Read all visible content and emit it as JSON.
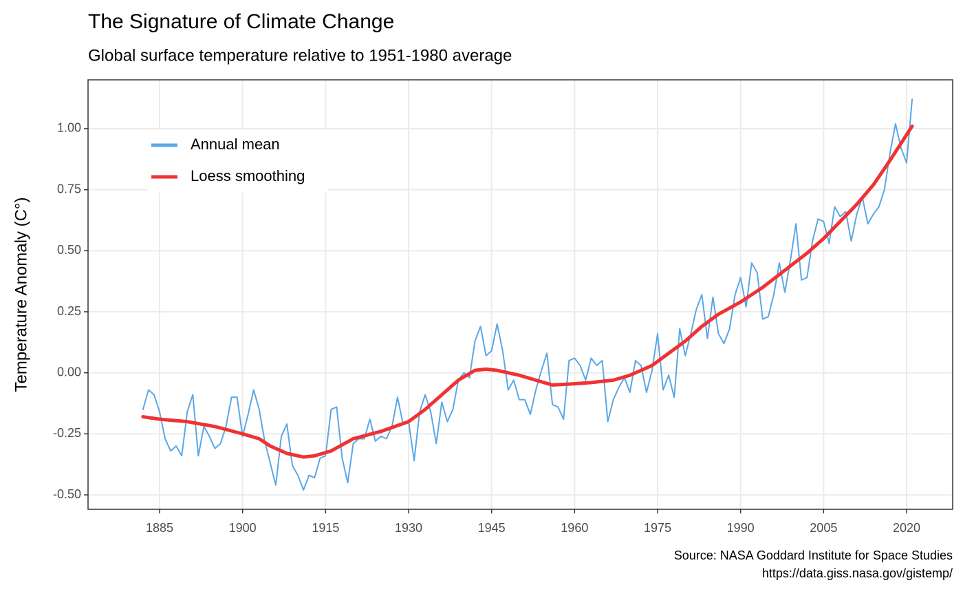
{
  "chart_data": {
    "type": "line",
    "title": "The Signature of Climate Change",
    "subtitle": "Global surface temperature relative to 1951-1980 average",
    "ylabel": "Temperature Anomaly (C°)",
    "caption": [
      "Source: NASA Goddard Institute for Space Studies",
      "https://data.giss.nasa.gov/gistemp/"
    ],
    "legend": "top-left",
    "grid": true,
    "xlim": [
      1872.07,
      2028.33
    ],
    "ylim": [
      -0.559,
      1.2
    ],
    "xticks": [
      1885,
      1900,
      1915,
      1930,
      1945,
      1960,
      1975,
      1990,
      2005,
      2020
    ],
    "yticks": [
      {
        "value": -0.5,
        "label": "-0.50"
      },
      {
        "value": -0.25,
        "label": "-0.25"
      },
      {
        "value": 0,
        "label": "0.00"
      },
      {
        "value": 0.25,
        "label": "0.25"
      },
      {
        "value": 0.5,
        "label": "0.50"
      },
      {
        "value": 0.75,
        "label": "0.75"
      },
      {
        "value": 1,
        "label": "1.00"
      }
    ],
    "x": [
      1882,
      1883,
      1884,
      1885,
      1886,
      1887,
      1888,
      1889,
      1890,
      1891,
      1892,
      1893,
      1894,
      1895,
      1896,
      1897,
      1898,
      1899,
      1900,
      1901,
      1902,
      1903,
      1904,
      1905,
      1906,
      1907,
      1908,
      1909,
      1910,
      1911,
      1912,
      1913,
      1914,
      1915,
      1916,
      1917,
      1918,
      1919,
      1920,
      1921,
      1922,
      1923,
      1924,
      1925,
      1926,
      1927,
      1928,
      1929,
      1930,
      1931,
      1932,
      1933,
      1934,
      1935,
      1936,
      1937,
      1938,
      1939,
      1940,
      1941,
      1942,
      1943,
      1944,
      1945,
      1946,
      1947,
      1948,
      1949,
      1950,
      1951,
      1952,
      1953,
      1954,
      1955,
      1956,
      1957,
      1958,
      1959,
      1960,
      1961,
      1962,
      1963,
      1964,
      1965,
      1966,
      1967,
      1968,
      1969,
      1970,
      1971,
      1972,
      1973,
      1974,
      1975,
      1976,
      1977,
      1978,
      1979,
      1980,
      1981,
      1982,
      1983,
      1984,
      1985,
      1986,
      1987,
      1988,
      1989,
      1990,
      1991,
      1992,
      1993,
      1994,
      1995,
      1996,
      1997,
      1998,
      1999,
      2000,
      2001,
      2002,
      2003,
      2004,
      2005,
      2006,
      2007,
      2008,
      2009,
      2010,
      2011,
      2012,
      2013,
      2014,
      2015,
      2016,
      2017,
      2018,
      2019,
      2020,
      2021
    ],
    "series": [
      {
        "name": "Annual mean",
        "color": "#5aa7e6",
        "width": 2,
        "values": [
          -0.15,
          -0.07,
          -0.09,
          -0.16,
          -0.27,
          -0.32,
          -0.3,
          -0.34,
          -0.16,
          -0.09,
          -0.34,
          -0.22,
          -0.26,
          -0.31,
          -0.29,
          -0.22,
          -0.1,
          -0.1,
          -0.26,
          -0.17,
          -0.07,
          -0.15,
          -0.28,
          -0.37,
          -0.46,
          -0.26,
          -0.21,
          -0.38,
          -0.42,
          -0.48,
          -0.42,
          -0.43,
          -0.35,
          -0.34,
          -0.15,
          -0.14,
          -0.35,
          -0.45,
          -0.29,
          -0.27,
          -0.27,
          -0.19,
          -0.28,
          -0.26,
          -0.27,
          -0.22,
          -0.1,
          -0.21,
          -0.2,
          -0.36,
          -0.16,
          -0.09,
          -0.16,
          -0.29,
          -0.12,
          -0.2,
          -0.15,
          -0.03,
          0.0,
          -0.02,
          0.13,
          0.19,
          0.07,
          0.09,
          0.2,
          0.09,
          -0.07,
          -0.03,
          -0.11,
          -0.11,
          -0.17,
          -0.07,
          0.01,
          0.08,
          -0.13,
          -0.14,
          -0.19,
          0.05,
          0.06,
          0.03,
          -0.03,
          0.06,
          0.03,
          0.05,
          -0.2,
          -0.11,
          -0.06,
          -0.02,
          -0.08,
          0.05,
          0.03,
          -0.08,
          0.01,
          0.16,
          -0.07,
          -0.01,
          -0.1,
          0.18,
          0.07,
          0.16,
          0.26,
          0.32,
          0.14,
          0.31,
          0.16,
          0.12,
          0.18,
          0.32,
          0.39,
          0.27,
          0.45,
          0.41,
          0.22,
          0.23,
          0.32,
          0.45,
          0.33,
          0.46,
          0.61,
          0.38,
          0.39,
          0.54,
          0.63,
          0.62,
          0.53,
          0.68,
          0.64,
          0.66,
          0.54,
          0.65,
          0.72,
          0.61,
          0.65,
          0.68,
          0.75,
          0.9,
          1.02,
          0.92,
          0.86,
          1.12
        ]
      },
      {
        "name": "Loess smoothing",
        "color": "#f03232",
        "width": 5,
        "x": [
          1882,
          1885,
          1890,
          1895,
          1900,
          1903,
          1905,
          1908,
          1911,
          1913,
          1916,
          1920,
          1925,
          1930,
          1933,
          1936,
          1939,
          1942,
          1944,
          1946,
          1950,
          1953,
          1956,
          1960,
          1963,
          1967,
          1970,
          1974,
          1977,
          1980,
          1983,
          1986,
          1990,
          1994,
          1998,
          2002,
          2005,
          2008,
          2011,
          2014,
          2017,
          2021
        ],
        "values": [
          -0.18,
          -0.19,
          -0.2,
          -0.22,
          -0.25,
          -0.27,
          -0.3,
          -0.33,
          -0.345,
          -0.34,
          -0.32,
          -0.27,
          -0.24,
          -0.2,
          -0.15,
          -0.09,
          -0.03,
          0.01,
          0.015,
          0.01,
          -0.01,
          -0.03,
          -0.05,
          -0.045,
          -0.04,
          -0.03,
          -0.01,
          0.03,
          0.08,
          0.13,
          0.19,
          0.24,
          0.29,
          0.35,
          0.42,
          0.49,
          0.55,
          0.62,
          0.69,
          0.77,
          0.87,
          1.01
        ]
      }
    ]
  }
}
